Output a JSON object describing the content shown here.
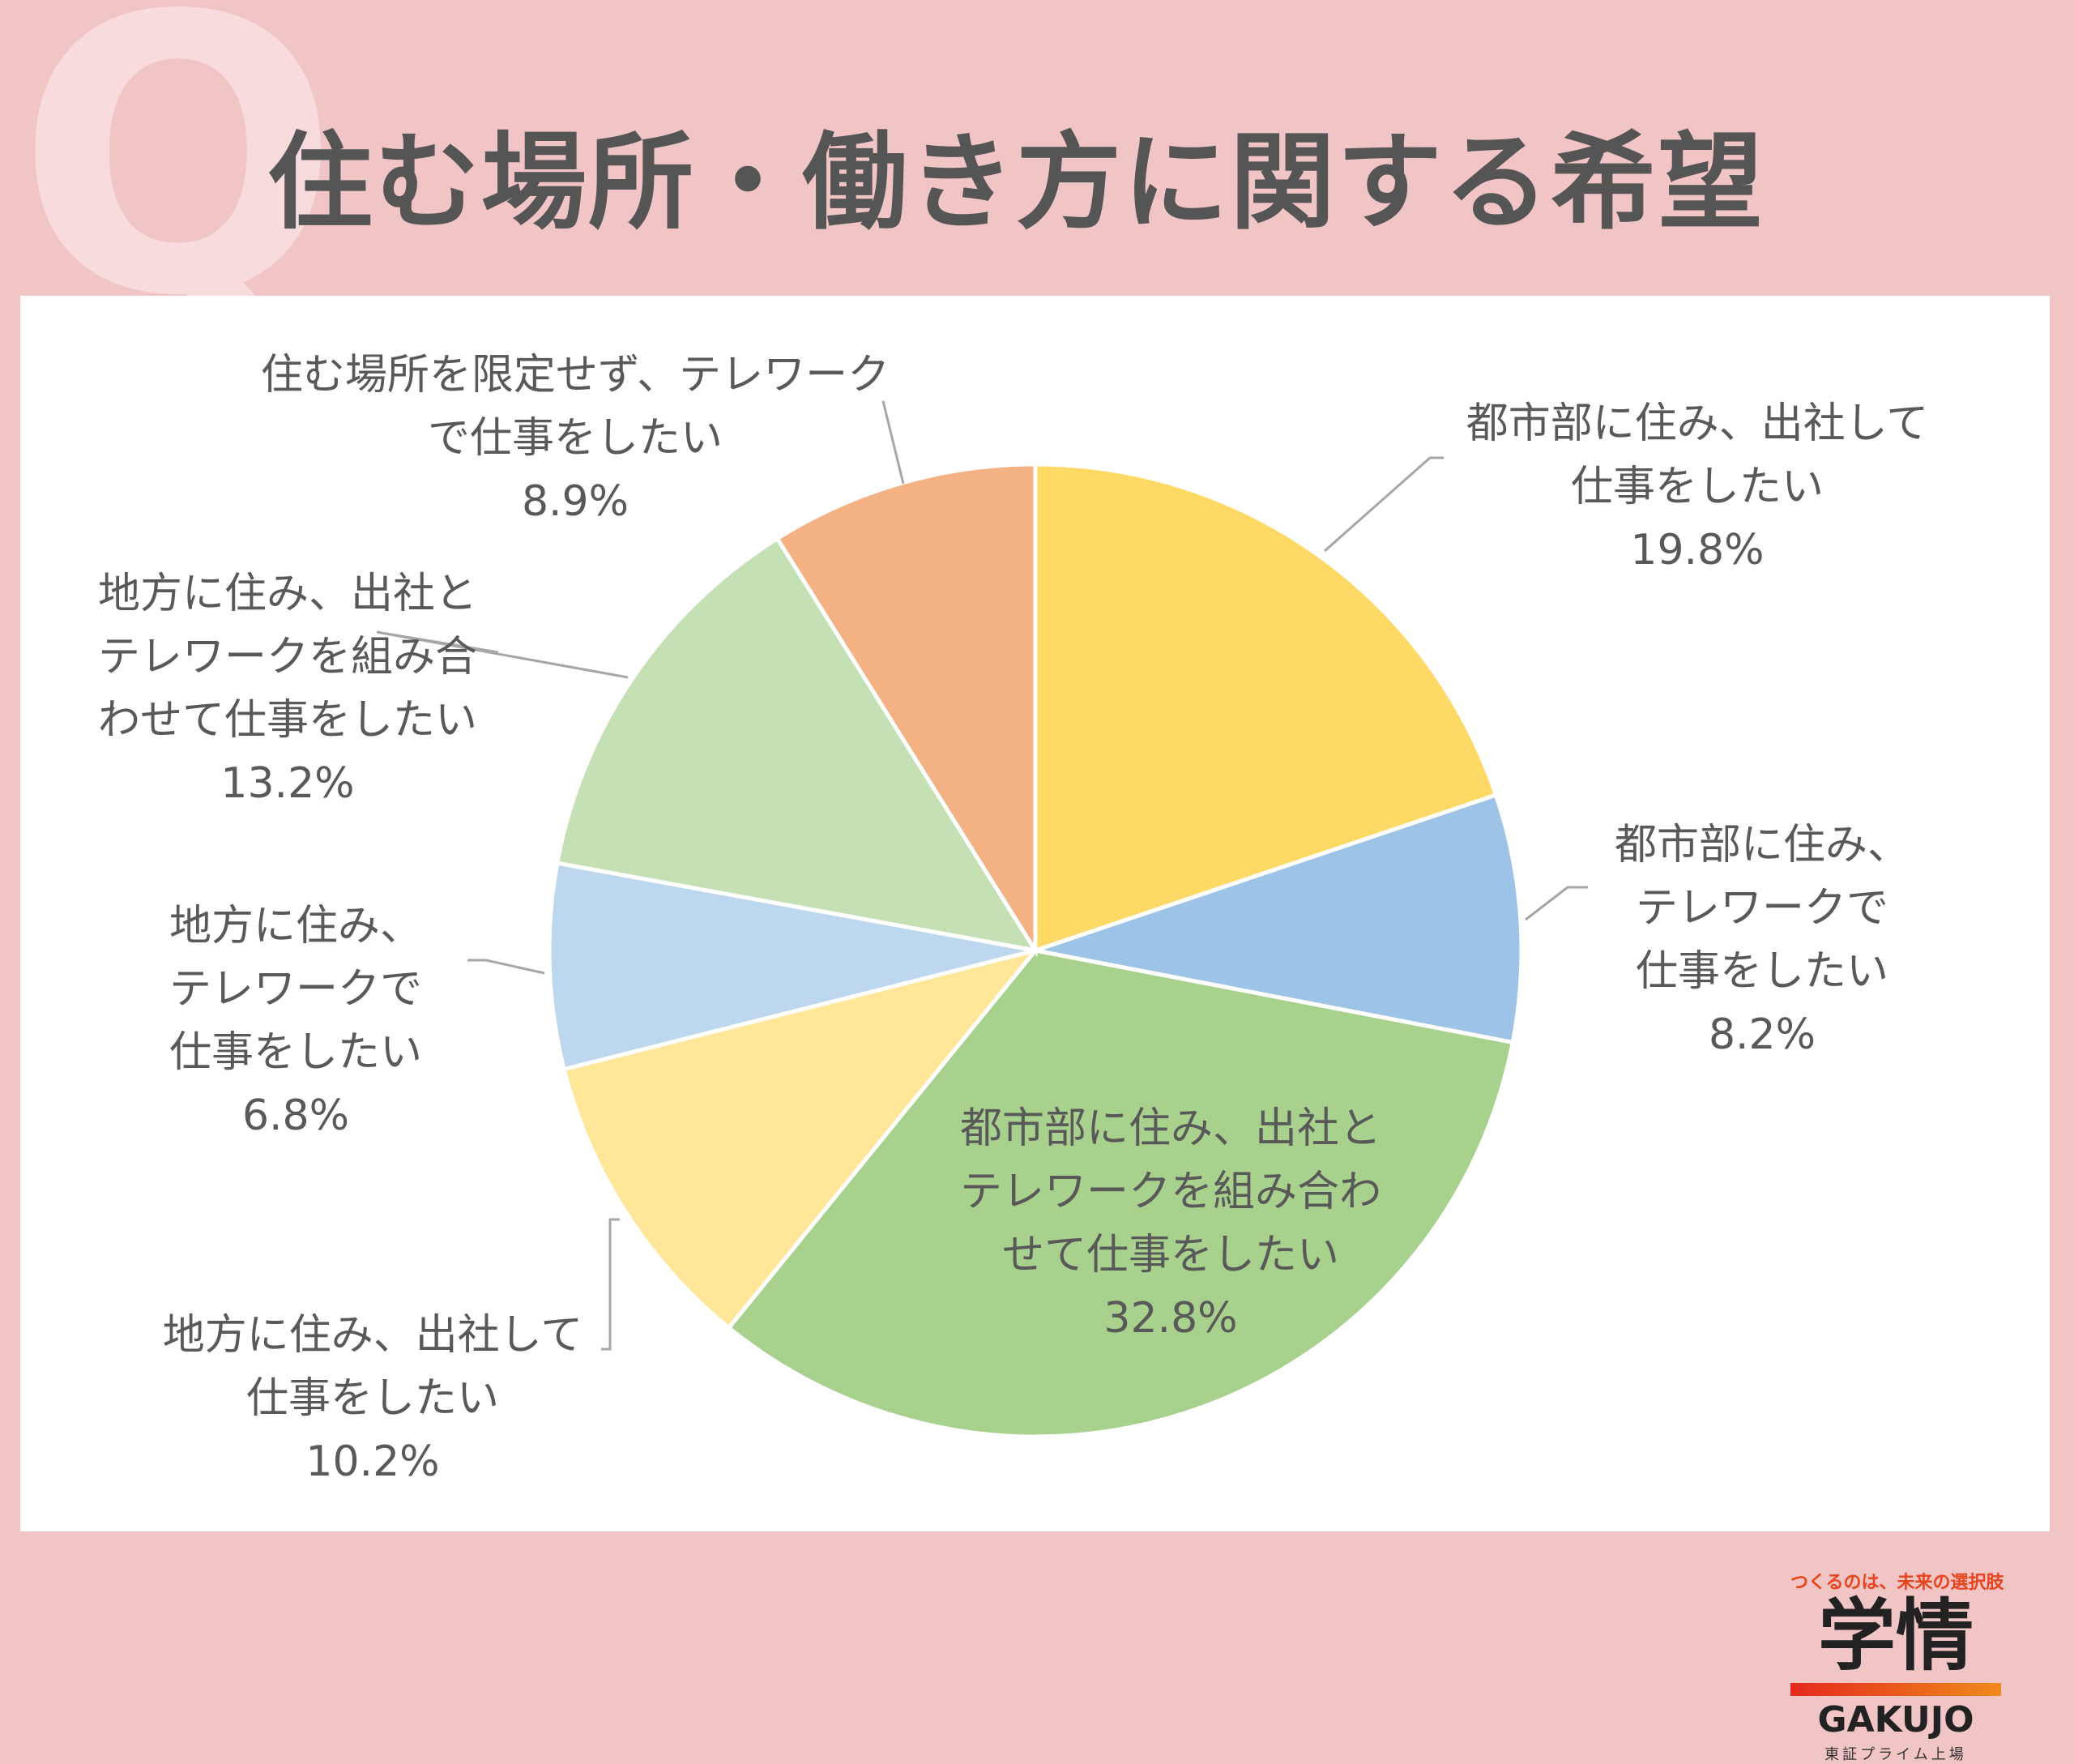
{
  "header": {
    "q_mark": "Q",
    "title": "住む場所・働き方に関する希望"
  },
  "chart_data": {
    "type": "pie",
    "title": "住む場所・働き方に関する希望",
    "unit": "%",
    "slices": [
      {
        "lines": [
          "都市部に住み、出社して",
          "仕事をしたい"
        ],
        "value": 19.8,
        "value_label": "19.8%",
        "color": "#ffd966"
      },
      {
        "lines": [
          "都市部に住み、",
          "テレワークで",
          "仕事をしたい"
        ],
        "value": 8.2,
        "value_label": "8.2%",
        "color": "#9dc3e6"
      },
      {
        "lines": [
          "都市部に住み、出社と",
          "テレワークを組み合わ",
          "せて仕事をしたい"
        ],
        "value": 32.8,
        "value_label": "32.8%",
        "color": "#a9d18e"
      },
      {
        "lines": [
          "地方に住み、出社して",
          "仕事をしたい"
        ],
        "value": 10.2,
        "value_label": "10.2%",
        "color": "#ffe699"
      },
      {
        "lines": [
          "地方に住み、",
          "テレワークで",
          "仕事をしたい"
        ],
        "value": 6.8,
        "value_label": "6.8%",
        "color": "#bdd7ee"
      },
      {
        "lines": [
          "地方に住み、出社と",
          "テレワークを組み合",
          "わせて仕事をしたい"
        ],
        "value": 13.2,
        "value_label": "13.2%",
        "color": "#c5e0b4"
      },
      {
        "lines": [
          "住む場所を限定せず、テレワーク",
          "で仕事をしたい"
        ],
        "value": 8.9,
        "value_label": "8.9%",
        "color": "#f4b183"
      }
    ]
  },
  "logo": {
    "tagline": "つくるのは、未来の選択肢",
    "name_jp": "学情",
    "name_en": "GAKUJO",
    "sub": "東証プライム上場"
  }
}
